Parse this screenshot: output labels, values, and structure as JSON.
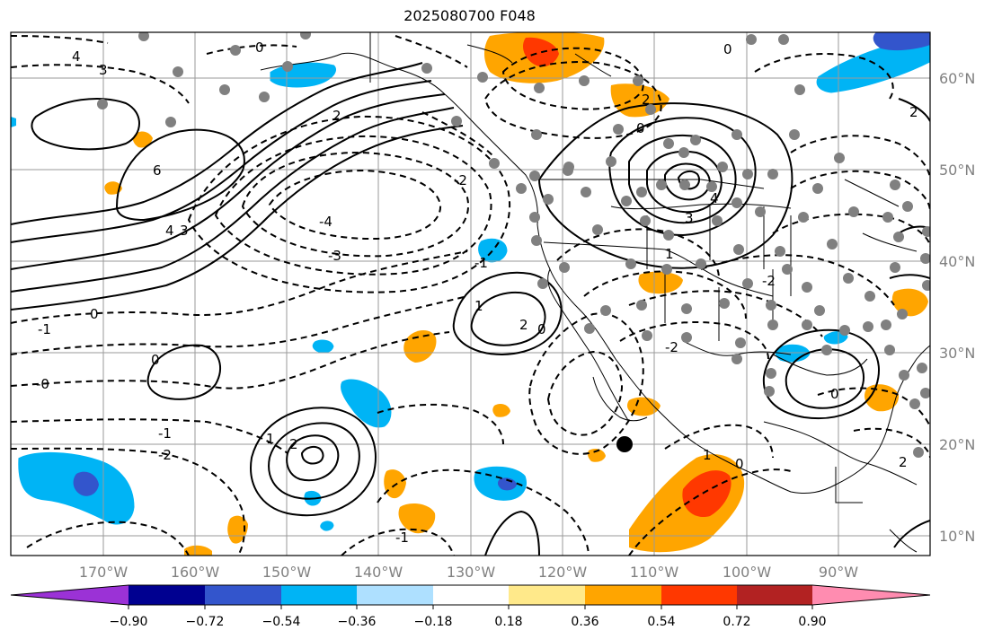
{
  "title": "2025080700 F048",
  "map": {
    "lat_labels": [
      "60°N",
      "50°N",
      "40°N",
      "30°N",
      "20°N",
      "10°N"
    ],
    "lon_labels": [
      "170°W",
      "160°W",
      "150°W",
      "140°W",
      "130°W",
      "120°W",
      "110°W",
      "100°W",
      "90°W"
    ],
    "contour_labels": [
      "4",
      "3",
      "2",
      "0",
      "6",
      "4",
      "3",
      "-4",
      "-3",
      "-2",
      "-1",
      "0",
      "1",
      "2",
      "0",
      "-1",
      "-0",
      "-1",
      "-2",
      "0",
      "2",
      "1",
      "0",
      "2",
      "3",
      "4",
      "1",
      "-2",
      "-2",
      "0",
      "1",
      "0",
      "-1",
      "2",
      "2",
      "0"
    ]
  },
  "colorbar": {
    "colors": [
      "#9b32d6",
      "#000090",
      "#3355cc",
      "#00b4f5",
      "#aee0ff",
      "#ffffff",
      "#ffe98a",
      "#ffa500",
      "#ff3800",
      "#b22222",
      "#ff8cb0"
    ],
    "labels": [
      "−0.90",
      "−0.72",
      "−0.54",
      "−0.36",
      "−0.18",
      "0.18",
      "0.36",
      "0.54",
      "0.72",
      "0.90"
    ]
  }
}
